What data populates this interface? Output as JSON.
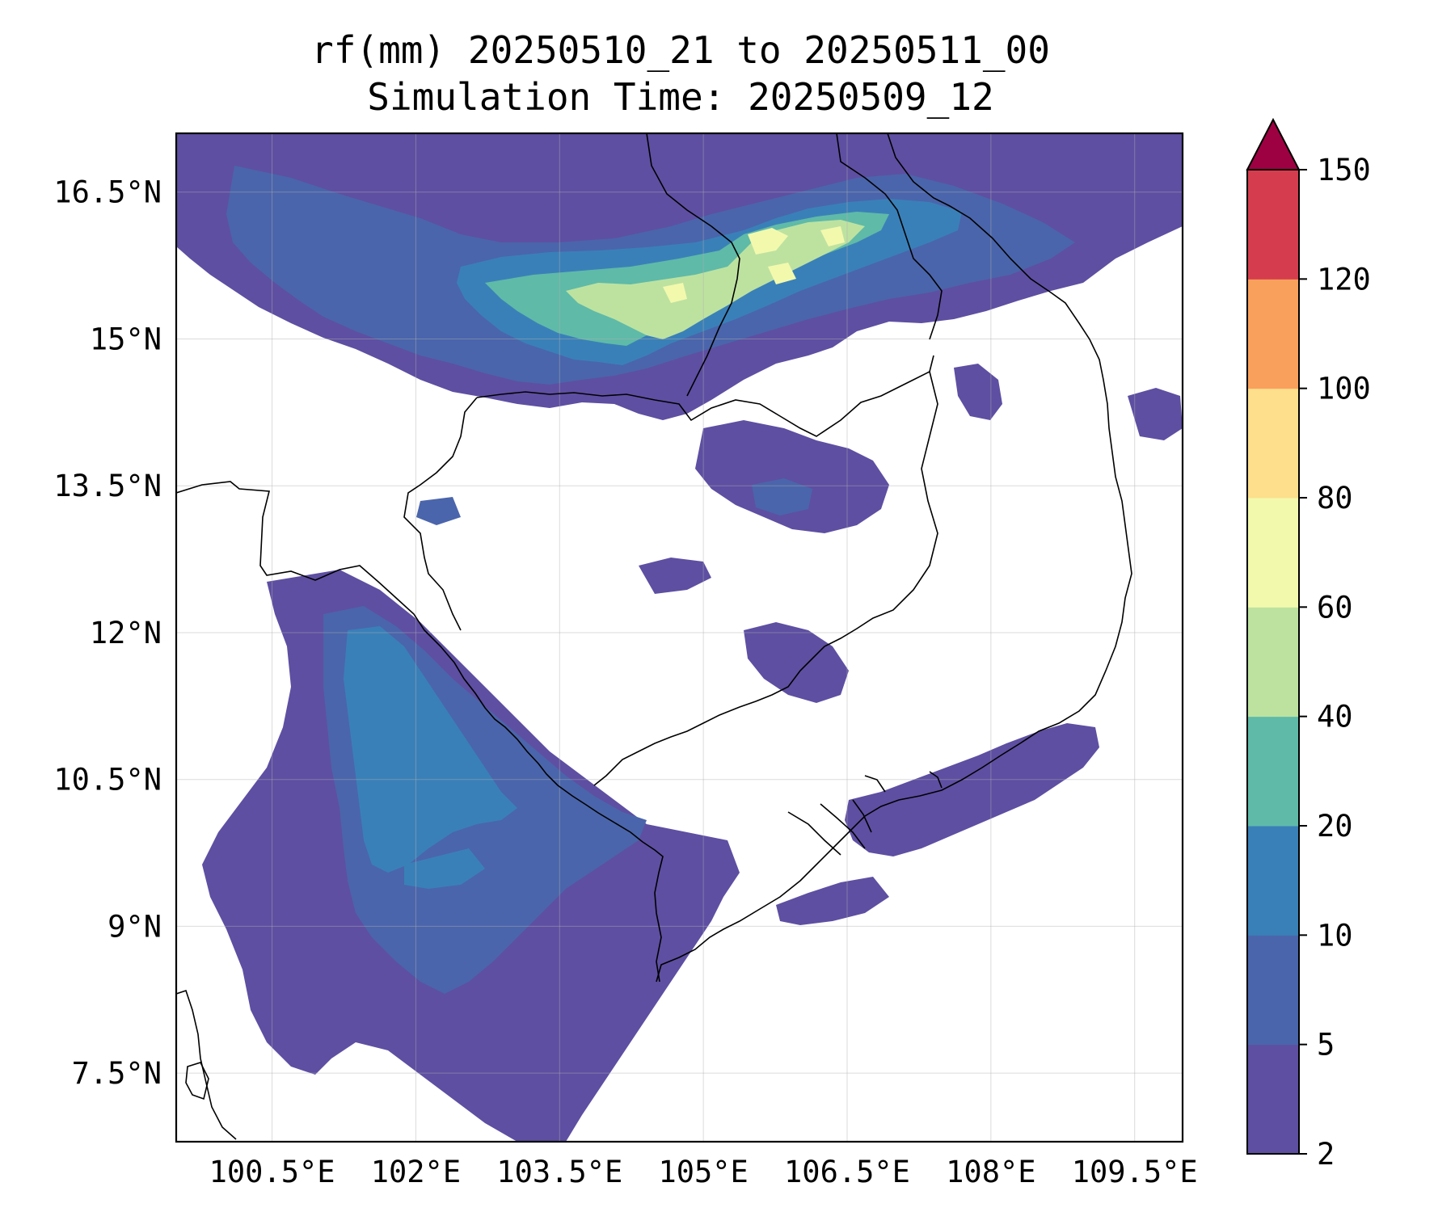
{
  "map": {
    "title_line1": "rf(mm) 20250510_21 to 20250511_00",
    "title_line2": "Simulation Time: 20250509_12",
    "variable": "rf(mm)",
    "lon_range": [
      99.5,
      110.0
    ],
    "lat_range": [
      6.8,
      17.1
    ],
    "lon_ticks": [
      {
        "value": 100.5,
        "label": "100.5°E"
      },
      {
        "value": 102.0,
        "label": "102°E"
      },
      {
        "value": 103.5,
        "label": "103.5°E"
      },
      {
        "value": 105.0,
        "label": "105°E"
      },
      {
        "value": 106.5,
        "label": "106.5°E"
      },
      {
        "value": 108.0,
        "label": "108°E"
      },
      {
        "value": 109.5,
        "label": "109.5°E"
      }
    ],
    "lat_ticks": [
      {
        "value": 16.5,
        "label": "16.5°N"
      },
      {
        "value": 15.0,
        "label": "15°N"
      },
      {
        "value": 13.5,
        "label": "13.5°N"
      },
      {
        "value": 12.0,
        "label": "12°N"
      },
      {
        "value": 10.5,
        "label": "10.5°N"
      },
      {
        "value": 9.0,
        "label": "9°N"
      },
      {
        "value": 7.5,
        "label": "7.5°N"
      }
    ],
    "grid": true
  },
  "colorbar": {
    "levels": [
      "2",
      "5",
      "10",
      "20",
      "40",
      "60",
      "80",
      "100",
      "120",
      "150"
    ],
    "colors": [
      "#5e4fa2",
      "#4a65ab",
      "#3a80b8",
      "#5fbaa8",
      "#bde2a0",
      "#f2f9ad",
      "#fddf8c",
      "#f9a05c",
      "#d53d4e"
    ],
    "extend_color": "#9e0142",
    "extend": "max"
  },
  "features": {
    "coastline_color": "#000000",
    "rain_regions": [
      {
        "name": "north-band",
        "level": 1
      },
      {
        "name": "north-band",
        "level": 2
      },
      {
        "name": "north-core",
        "level": 3
      },
      {
        "name": "north-core",
        "level": 4
      },
      {
        "name": "north-peak",
        "level": 5
      },
      {
        "name": "north-peak",
        "level": 6
      },
      {
        "name": "gulf-band",
        "level": 1
      },
      {
        "name": "gulf-band",
        "level": 2
      },
      {
        "name": "gulf-core",
        "level": 3
      },
      {
        "name": "mekong-delta",
        "level": 1
      },
      {
        "name": "central-patches",
        "level": 1
      },
      {
        "name": "central-patches",
        "level": 2
      }
    ]
  }
}
